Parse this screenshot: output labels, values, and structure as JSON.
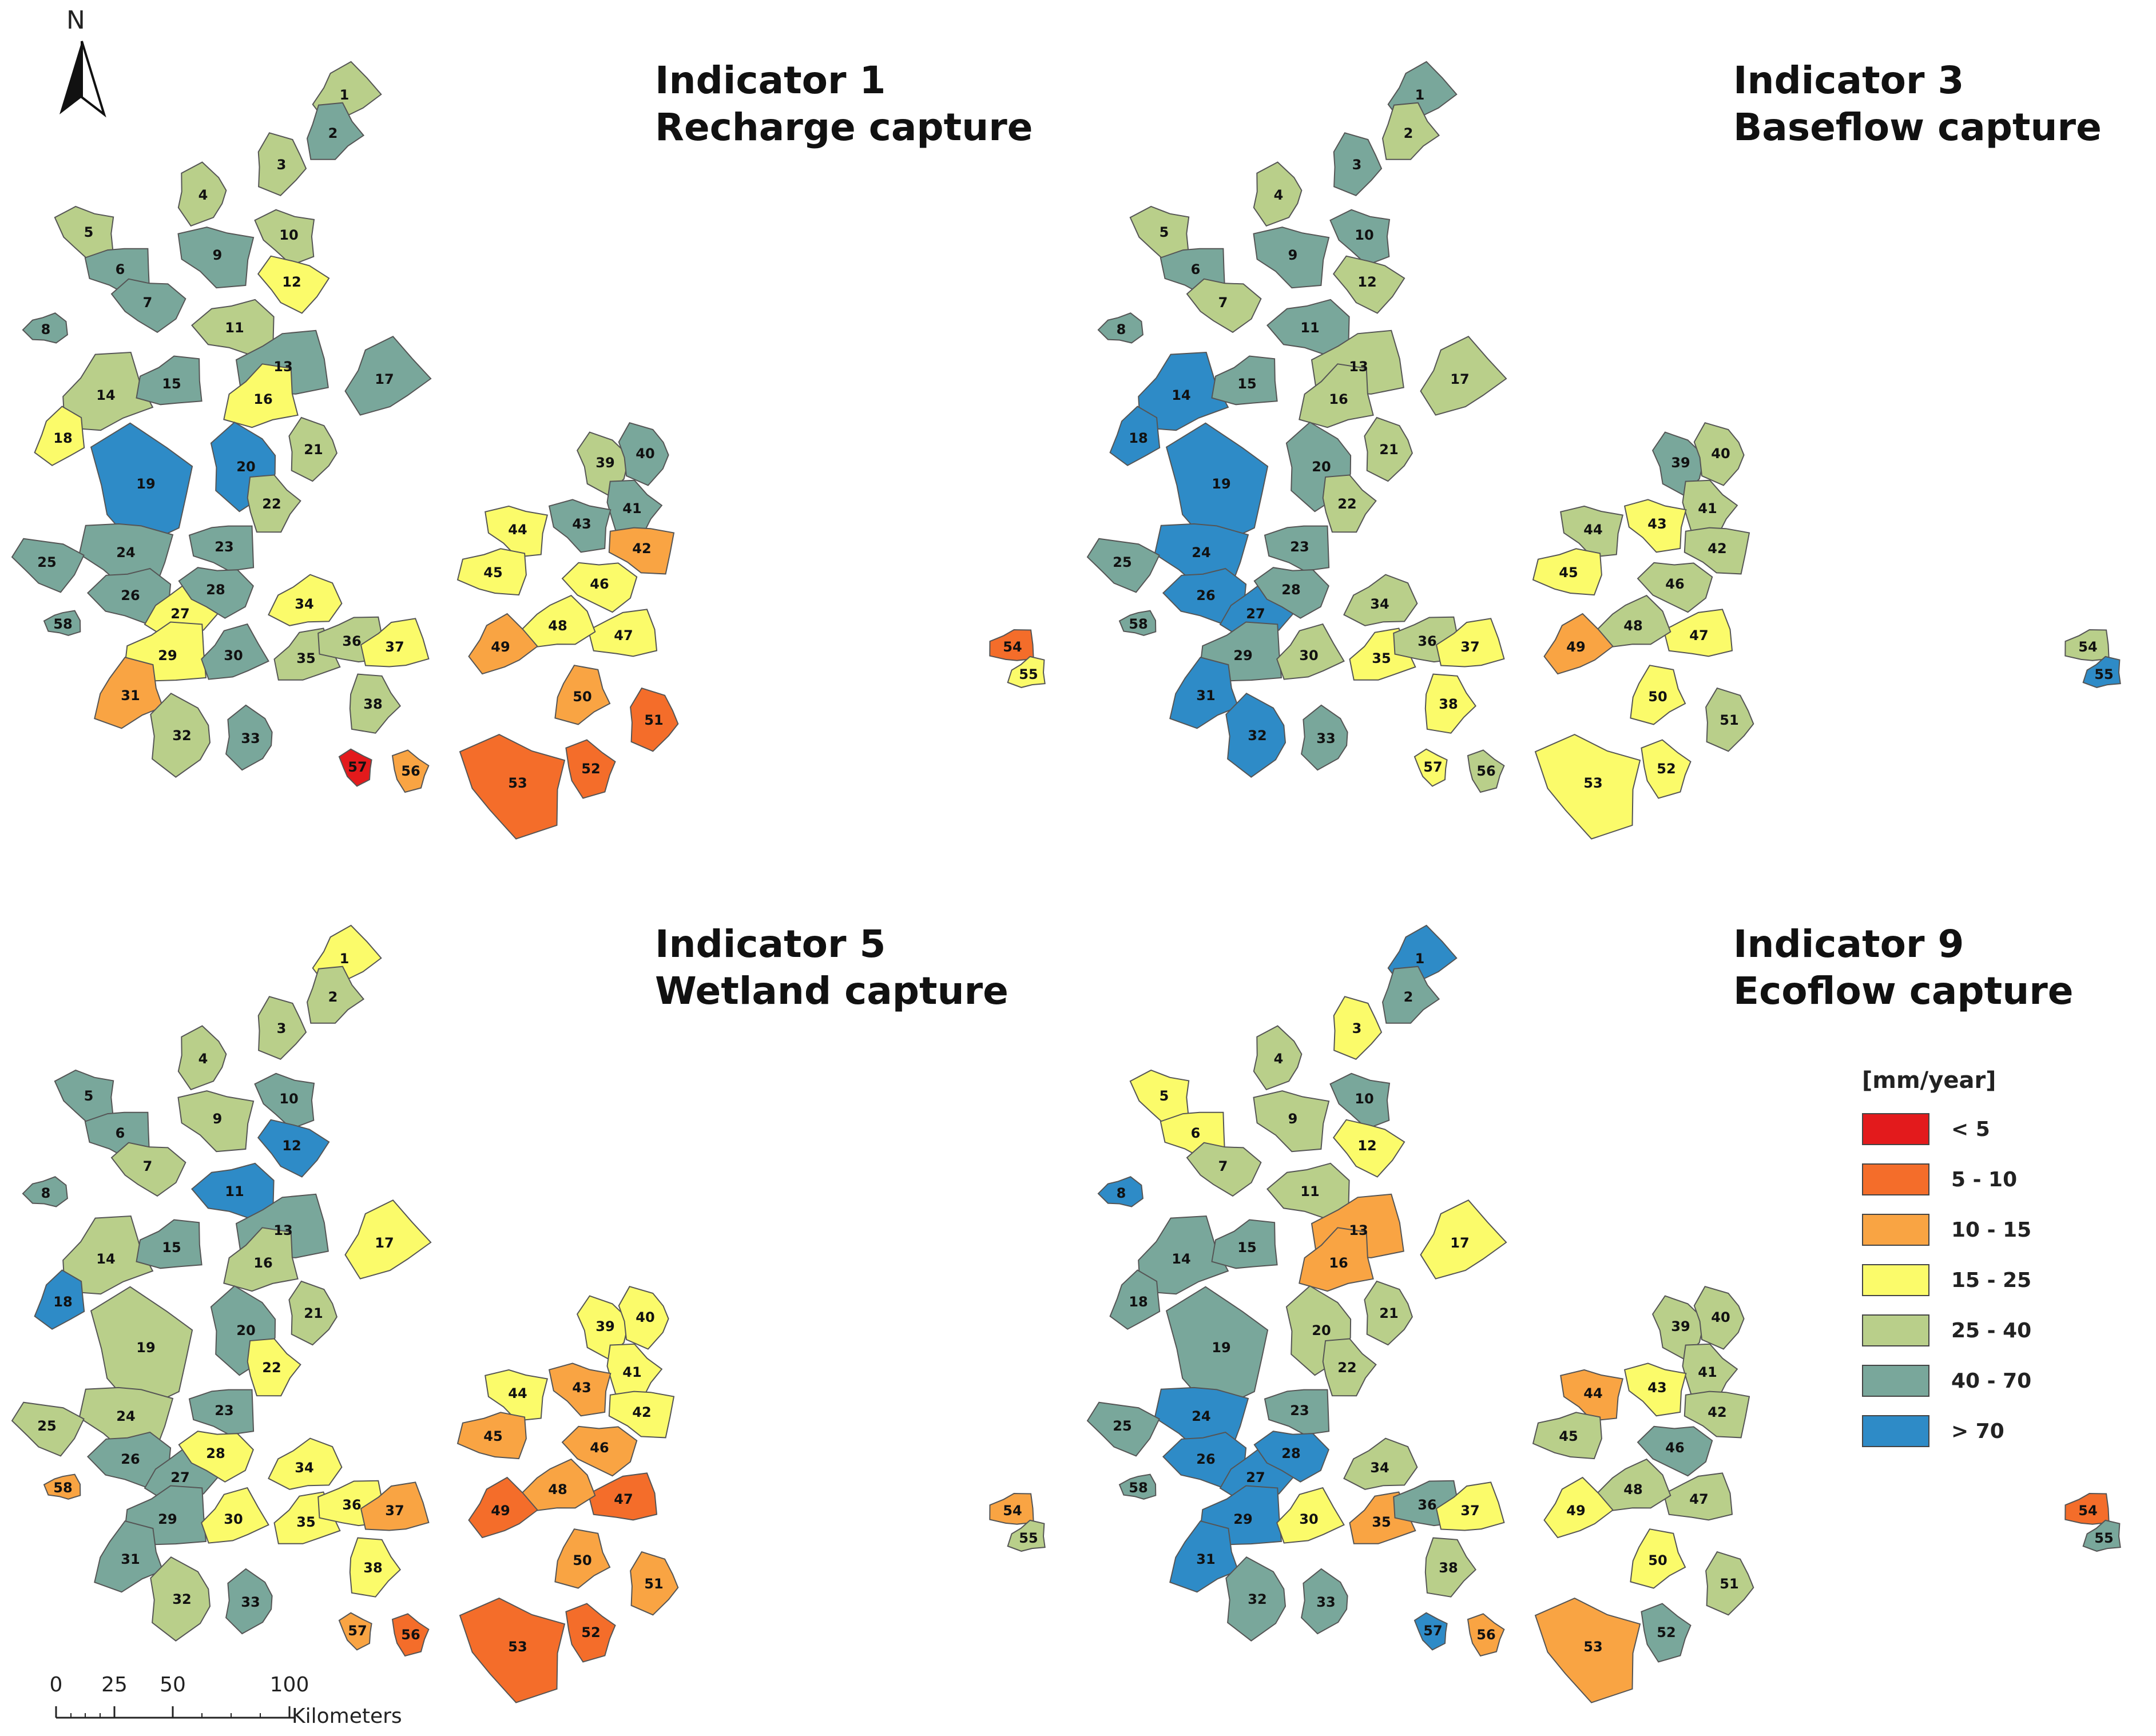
{
  "panels": [
    {
      "id": "indicator-1",
      "title_line1": "Indicator 1",
      "title_line2": "Recharge capture",
      "zones": {
        "1": "25-40",
        "2": "40-70",
        "3": "25-40",
        "4": "25-40",
        "5": "25-40",
        "6": "40-70",
        "7": "40-70",
        "8": "40-70",
        "9": "40-70",
        "10": "25-40",
        "11": "25-40",
        "12": "15-25",
        "13": "40-70",
        "14": "25-40",
        "15": "40-70",
        "16": "15-25",
        "17": "40-70",
        "18": "15-25",
        "19": ">70",
        "20": ">70",
        "21": "25-40",
        "22": "25-40",
        "23": "40-70",
        "24": "40-70",
        "25": "40-70",
        "26": "40-70",
        "27": "15-25",
        "28": "40-70",
        "29": "15-25",
        "30": "40-70",
        "31": "10-15",
        "32": "25-40",
        "33": "40-70",
        "34": "15-25",
        "35": "25-40",
        "36": "25-40",
        "37": "15-25",
        "38": "25-40",
        "39": "25-40",
        "40": "40-70",
        "41": "40-70",
        "42": "10-15",
        "43": "40-70",
        "44": "15-25",
        "45": "15-25",
        "46": "15-25",
        "47": "15-25",
        "48": "15-25",
        "49": "10-15",
        "50": "10-15",
        "51": "5-10",
        "52": "5-10",
        "53": "5-10",
        "54": "5-10",
        "55": "15-25",
        "56": "10-15",
        "57": "<5",
        "58": "40-70"
      }
    },
    {
      "id": "indicator-3",
      "title_line1": "Indicator 3",
      "title_line2": "Baseflow capture",
      "zones": {
        "1": "40-70",
        "2": "25-40",
        "3": "40-70",
        "4": "25-40",
        "5": "25-40",
        "6": "40-70",
        "7": "25-40",
        "8": "40-70",
        "9": "40-70",
        "10": "40-70",
        "11": "40-70",
        "12": "25-40",
        "13": "25-40",
        "14": ">70",
        "15": "40-70",
        "16": "25-40",
        "17": "25-40",
        "18": ">70",
        "19": ">70",
        "20": "40-70",
        "21": "25-40",
        "22": "25-40",
        "23": "40-70",
        "24": ">70",
        "25": "40-70",
        "26": ">70",
        "27": ">70",
        "28": "40-70",
        "29": "40-70",
        "30": "25-40",
        "31": ">70",
        "32": ">70",
        "33": "40-70",
        "34": "25-40",
        "35": "15-25",
        "36": "25-40",
        "37": "15-25",
        "38": "15-25",
        "39": "40-70",
        "40": "25-40",
        "41": "25-40",
        "42": "25-40",
        "43": "15-25",
        "44": "25-40",
        "45": "15-25",
        "46": "25-40",
        "47": "15-25",
        "48": "25-40",
        "49": "10-15",
        "50": "15-25",
        "51": "25-40",
        "52": "15-25",
        "53": "15-25",
        "54": "25-40",
        "55": ">70",
        "56": "25-40",
        "57": "15-25",
        "58": "40-70"
      }
    },
    {
      "id": "indicator-5",
      "title_line1": "Indicator 5",
      "title_line2": "Wetland capture",
      "zones": {
        "1": "15-25",
        "2": "25-40",
        "3": "25-40",
        "4": "25-40",
        "5": "40-70",
        "6": "40-70",
        "7": "25-40",
        "8": "40-70",
        "9": "25-40",
        "10": "40-70",
        "11": ">70",
        "12": ">70",
        "13": "40-70",
        "14": "25-40",
        "15": "40-70",
        "16": "25-40",
        "17": "15-25",
        "18": ">70",
        "19": "25-40",
        "20": "40-70",
        "21": "25-40",
        "22": "15-25",
        "23": "40-70",
        "24": "25-40",
        "25": "25-40",
        "26": "40-70",
        "27": "40-70",
        "28": "15-25",
        "29": "40-70",
        "30": "15-25",
        "31": "40-70",
        "32": "25-40",
        "33": "40-70",
        "34": "15-25",
        "35": "15-25",
        "36": "15-25",
        "37": "10-15",
        "38": "15-25",
        "39": "15-25",
        "40": "15-25",
        "41": "15-25",
        "42": "15-25",
        "43": "10-15",
        "44": "15-25",
        "45": "10-15",
        "46": "10-15",
        "47": "5-10",
        "48": "10-15",
        "49": "5-10",
        "50": "10-15",
        "51": "10-15",
        "52": "5-10",
        "53": "5-10",
        "54": "10-15",
        "55": "25-40",
        "56": "5-10",
        "57": "10-15",
        "58": "10-15"
      }
    },
    {
      "id": "indicator-9",
      "title_line1": "Indicator 9",
      "title_line2": "Ecoflow capture",
      "zones": {
        "1": ">70",
        "2": "40-70",
        "3": "15-25",
        "4": "25-40",
        "5": "15-25",
        "6": "15-25",
        "7": "25-40",
        "8": ">70",
        "9": "25-40",
        "10": "40-70",
        "11": "25-40",
        "12": "15-25",
        "13": "10-15",
        "14": "40-70",
        "15": "40-70",
        "16": "10-15",
        "17": "15-25",
        "18": "40-70",
        "19": "40-70",
        "20": "25-40",
        "21": "25-40",
        "22": "25-40",
        "23": "40-70",
        "24": ">70",
        "25": "40-70",
        "26": ">70",
        "27": ">70",
        "28": ">70",
        "29": ">70",
        "30": "15-25",
        "31": ">70",
        "32": "40-70",
        "33": "40-70",
        "34": "25-40",
        "35": "10-15",
        "36": "40-70",
        "37": "15-25",
        "38": "25-40",
        "39": "25-40",
        "40": "25-40",
        "41": "25-40",
        "42": "25-40",
        "43": "15-25",
        "44": "10-15",
        "45": "25-40",
        "46": "40-70",
        "47": "25-40",
        "48": "25-40",
        "49": "15-25",
        "50": "15-25",
        "51": "25-40",
        "52": "40-70",
        "53": "10-15",
        "54": "5-10",
        "55": "40-70",
        "56": "10-15",
        "57": ">70",
        "58": "40-70"
      }
    }
  ],
  "legend": {
    "title": "[mm/year]",
    "classes": [
      {
        "key": "<5",
        "label": "< 5",
        "color": "#e31a1c"
      },
      {
        "key": "5-10",
        "label": "5 - 10",
        "color": "#f46d2a"
      },
      {
        "key": "10-15",
        "label": "10 - 15",
        "color": "#f9a443"
      },
      {
        "key": "15-25",
        "label": "15 - 25",
        "color": "#fbfb6a"
      },
      {
        "key": "25-40",
        "label": "25 - 40",
        "color": "#b9cf8a"
      },
      {
        "key": "40-70",
        "label": "40 - 70",
        "color": "#79a79b"
      },
      {
        "key": ">70",
        "label": "> 70",
        "color": "#2e8bc7"
      }
    ]
  },
  "north_arrow": {
    "label": "N"
  },
  "scale_bar": {
    "ticks": [
      "0",
      "25",
      "50",
      "100"
    ],
    "unit": "Kilometers"
  }
}
